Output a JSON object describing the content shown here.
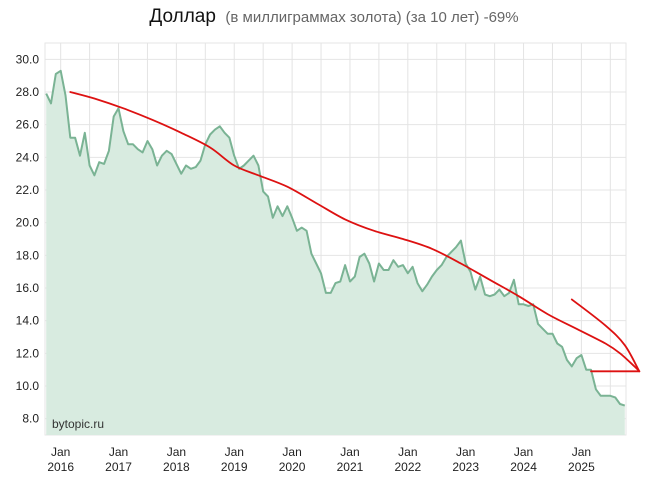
{
  "chart_data": {
    "type": "area",
    "title": "Доллар",
    "subtitle": "(в миллиграммах золота) (за 10 лет) -69%",
    "watermark": "bytopic.ru",
    "xlabel": "",
    "ylabel": "",
    "x_start": "2015-10",
    "x_end": "2025-09",
    "ylim": [
      7.0,
      31.0
    ],
    "y_ticks": [
      8.0,
      10.0,
      12.0,
      14.0,
      16.0,
      18.0,
      20.0,
      22.0,
      24.0,
      26.0,
      28.0,
      30.0
    ],
    "x_ticks": [
      {
        "date": "2016-01",
        "label_month": "Jan",
        "label_year": "2016"
      },
      {
        "date": "2017-01",
        "label_month": "Jan",
        "label_year": "2017"
      },
      {
        "date": "2018-01",
        "label_month": "Jan",
        "label_year": "2018"
      },
      {
        "date": "2019-01",
        "label_month": "Jan",
        "label_year": "2019"
      },
      {
        "date": "2020-01",
        "label_month": "Jan",
        "label_year": "2020"
      },
      {
        "date": "2021-01",
        "label_month": "Jan",
        "label_year": "2021"
      },
      {
        "date": "2022-01",
        "label_month": "Jan",
        "label_year": "2022"
      },
      {
        "date": "2023-01",
        "label_month": "Jan",
        "label_year": "2023"
      },
      {
        "date": "2024-01",
        "label_month": "Jan",
        "label_year": "2024"
      },
      {
        "date": "2025-01",
        "label_month": "Jan",
        "label_year": "2025"
      }
    ],
    "grid": true,
    "series": [
      {
        "color": "#7ab394",
        "fill": "#d8ebe0",
        "points": [
          [
            "2015-10",
            27.9
          ],
          [
            "2015-11",
            27.3
          ],
          [
            "2015-12",
            29.1
          ],
          [
            "2016-01",
            29.3
          ],
          [
            "2016-02",
            27.8
          ],
          [
            "2016-03",
            25.2
          ],
          [
            "2016-04",
            25.2
          ],
          [
            "2016-05",
            24.1
          ],
          [
            "2016-06",
            25.5
          ],
          [
            "2016-07",
            23.5
          ],
          [
            "2016-08",
            22.9
          ],
          [
            "2016-09",
            23.7
          ],
          [
            "2016-10",
            23.6
          ],
          [
            "2016-11",
            24.4
          ],
          [
            "2016-12",
            26.5
          ],
          [
            "2017-01",
            27.0
          ],
          [
            "2017-02",
            25.6
          ],
          [
            "2017-03",
            24.8
          ],
          [
            "2017-04",
            24.8
          ],
          [
            "2017-05",
            24.5
          ],
          [
            "2017-06",
            24.3
          ],
          [
            "2017-07",
            25.0
          ],
          [
            "2017-08",
            24.5
          ],
          [
            "2017-09",
            23.5
          ],
          [
            "2017-10",
            24.1
          ],
          [
            "2017-11",
            24.4
          ],
          [
            "2017-12",
            24.2
          ],
          [
            "2018-01",
            23.6
          ],
          [
            "2018-02",
            23.0
          ],
          [
            "2018-03",
            23.5
          ],
          [
            "2018-04",
            23.3
          ],
          [
            "2018-05",
            23.4
          ],
          [
            "2018-06",
            23.8
          ],
          [
            "2018-07",
            24.8
          ],
          [
            "2018-08",
            25.4
          ],
          [
            "2018-09",
            25.7
          ],
          [
            "2018-10",
            25.9
          ],
          [
            "2018-11",
            25.5
          ],
          [
            "2018-12",
            25.2
          ],
          [
            "2019-01",
            24.1
          ],
          [
            "2019-02",
            23.3
          ],
          [
            "2019-03",
            23.5
          ],
          [
            "2019-04",
            23.8
          ],
          [
            "2019-05",
            24.1
          ],
          [
            "2019-06",
            23.5
          ],
          [
            "2019-07",
            21.9
          ],
          [
            "2019-08",
            21.6
          ],
          [
            "2019-09",
            20.3
          ],
          [
            "2019-10",
            21.0
          ],
          [
            "2019-11",
            20.4
          ],
          [
            "2019-12",
            21.0
          ],
          [
            "2020-01",
            20.3
          ],
          [
            "2020-02",
            19.5
          ],
          [
            "2020-03",
            19.7
          ],
          [
            "2020-04",
            19.5
          ],
          [
            "2020-05",
            18.1
          ],
          [
            "2020-06",
            17.5
          ],
          [
            "2020-07",
            16.9
          ],
          [
            "2020-08",
            15.7
          ],
          [
            "2020-09",
            15.7
          ],
          [
            "2020-10",
            16.3
          ],
          [
            "2020-11",
            16.4
          ],
          [
            "2020-12",
            17.4
          ],
          [
            "2021-01",
            16.4
          ],
          [
            "2021-02",
            16.7
          ],
          [
            "2021-03",
            17.9
          ],
          [
            "2021-04",
            18.1
          ],
          [
            "2021-05",
            17.5
          ],
          [
            "2021-06",
            16.4
          ],
          [
            "2021-07",
            17.5
          ],
          [
            "2021-08",
            17.1
          ],
          [
            "2021-09",
            17.1
          ],
          [
            "2021-10",
            17.7
          ],
          [
            "2021-11",
            17.3
          ],
          [
            "2021-12",
            17.4
          ],
          [
            "2022-01",
            16.9
          ],
          [
            "2022-02",
            17.3
          ],
          [
            "2022-03",
            16.3
          ],
          [
            "2022-04",
            15.8
          ],
          [
            "2022-05",
            16.2
          ],
          [
            "2022-06",
            16.7
          ],
          [
            "2022-07",
            17.1
          ],
          [
            "2022-08",
            17.4
          ],
          [
            "2022-09",
            17.9
          ],
          [
            "2022-10",
            18.2
          ],
          [
            "2022-11",
            18.5
          ],
          [
            "2022-12",
            18.9
          ],
          [
            "2023-01",
            17.5
          ],
          [
            "2023-02",
            17.0
          ],
          [
            "2023-03",
            15.9
          ],
          [
            "2023-04",
            16.7
          ],
          [
            "2023-05",
            15.6
          ],
          [
            "2023-06",
            15.5
          ],
          [
            "2023-07",
            15.6
          ],
          [
            "2023-08",
            15.9
          ],
          [
            "2023-09",
            15.5
          ],
          [
            "2023-10",
            15.7
          ],
          [
            "2023-11",
            16.5
          ],
          [
            "2023-12",
            15.0
          ],
          [
            "2024-01",
            15.0
          ],
          [
            "2024-02",
            14.9
          ],
          [
            "2024-03",
            15.0
          ],
          [
            "2024-04",
            13.8
          ],
          [
            "2024-05",
            13.5
          ],
          [
            "2024-06",
            13.2
          ],
          [
            "2024-07",
            13.2
          ],
          [
            "2024-08",
            12.6
          ],
          [
            "2024-09",
            12.4
          ],
          [
            "2024-10",
            11.6
          ],
          [
            "2024-11",
            11.2
          ],
          [
            "2024-12",
            11.7
          ],
          [
            "2025-01",
            11.9
          ],
          [
            "2025-02",
            11.0
          ],
          [
            "2025-03",
            11.0
          ],
          [
            "2025-04",
            9.8
          ],
          [
            "2025-05",
            9.4
          ],
          [
            "2025-06",
            9.4
          ],
          [
            "2025-07",
            9.4
          ],
          [
            "2025-08",
            9.3
          ],
          [
            "2025-09",
            8.9
          ],
          [
            "2025-10",
            8.8
          ]
        ]
      }
    ],
    "annotations": [
      {
        "kind": "trend-curve",
        "color": "#dd1111",
        "points": [
          [
            "2016-03",
            28.0
          ],
          [
            "2016-08",
            27.6
          ],
          [
            "2017-02",
            27.0
          ],
          [
            "2017-08",
            26.3
          ],
          [
            "2018-02",
            25.5
          ],
          [
            "2018-08",
            24.6
          ],
          [
            "2019-01",
            23.5
          ],
          [
            "2019-06",
            22.9
          ],
          [
            "2019-12",
            22.2
          ],
          [
            "2020-06",
            21.2
          ],
          [
            "2020-12",
            20.2
          ],
          [
            "2021-06",
            19.5
          ],
          [
            "2021-12",
            19.0
          ],
          [
            "2022-06",
            18.4
          ],
          [
            "2022-12",
            17.5
          ],
          [
            "2023-06",
            16.5
          ],
          [
            "2023-12",
            15.5
          ],
          [
            "2024-06",
            14.4
          ],
          [
            "2024-12",
            13.5
          ],
          [
            "2025-06",
            12.6
          ],
          [
            "2025-09",
            12.0
          ],
          [
            "2025-12",
            11.2
          ],
          [
            "2026-01",
            10.9
          ]
        ]
      },
      {
        "kind": "arrow-upper",
        "color": "#dd1111",
        "points": [
          [
            "2024-11",
            15.3
          ],
          [
            "2025-06",
            13.7
          ],
          [
            "2025-10",
            12.5
          ],
          [
            "2026-01",
            10.9
          ]
        ]
      },
      {
        "kind": "arrow-lower",
        "color": "#dd1111",
        "points": [
          [
            "2025-03",
            10.9
          ],
          [
            "2026-01",
            10.9
          ]
        ]
      }
    ]
  }
}
